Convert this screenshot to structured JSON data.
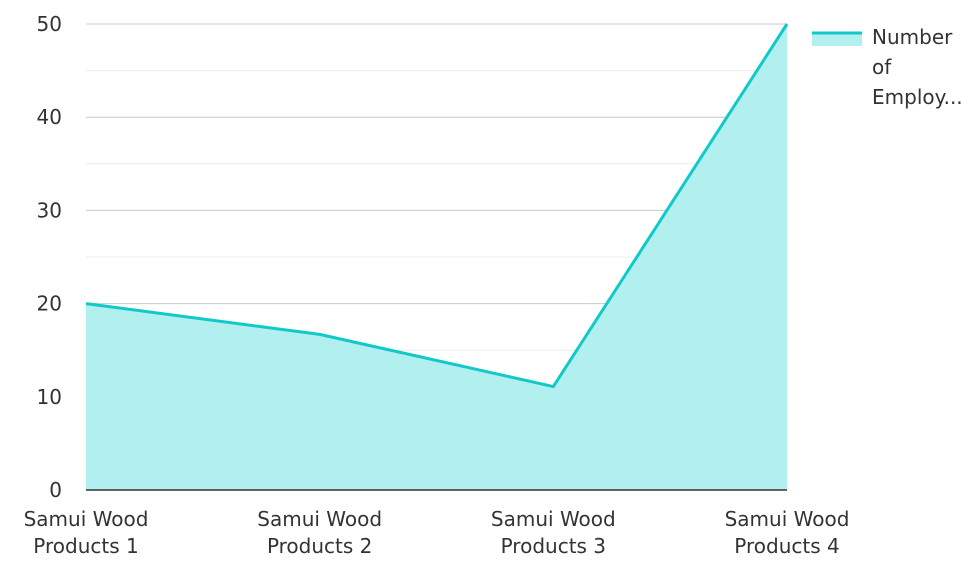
{
  "chart_data": {
    "type": "area",
    "categories": [
      [
        "Samui Wood",
        "Products 1"
      ],
      [
        "Samui Wood",
        "Products 2"
      ],
      [
        "Samui Wood",
        "Products 3"
      ],
      [
        "Samui Wood",
        "Products 4"
      ]
    ],
    "series": [
      {
        "name_lines": [
          "Number",
          "of",
          "Employ..."
        ],
        "values": [
          20,
          16.7,
          11.1,
          50
        ],
        "color": "#12C9C9",
        "fill_color": "#B2EFEF"
      }
    ],
    "y_ticks": [
      "0",
      "10",
      "20",
      "30",
      "40",
      "50"
    ],
    "ylim": [
      0,
      50
    ],
    "grid": true,
    "legend_position": "top-right"
  }
}
